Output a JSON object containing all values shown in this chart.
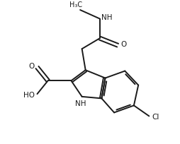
{
  "bg_color": "#ffffff",
  "line_color": "#1a1a1a",
  "line_width": 1.4,
  "font_size": 7.5,
  "xlim": [
    0,
    10
  ],
  "ylim": [
    0,
    8
  ],
  "figsize": [
    2.54,
    2.04
  ],
  "dpi": 100
}
